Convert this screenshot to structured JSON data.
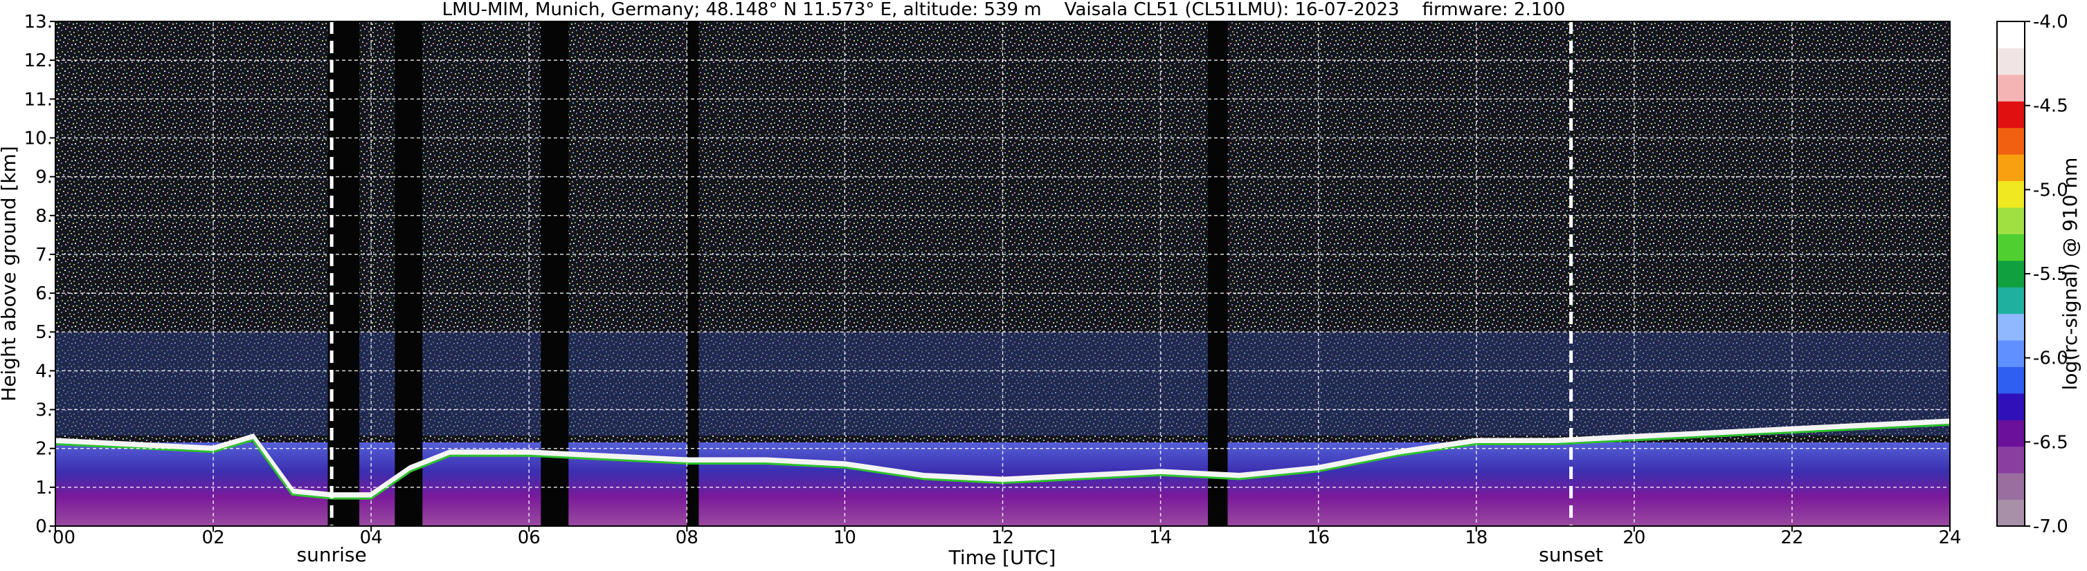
{
  "chart_data": {
    "type": "heatmap",
    "title": "LMU-MIM, Munich, Germany; 48.148° N 11.573° E, altitude: 539 m    Vaisala CL51 (CL51LMU): 16-07-2023    firmware: 2.100",
    "xlabel": "Time [UTC]",
    "ylabel": "Height above ground [km]",
    "xlim": [
      0,
      24
    ],
    "ylim": [
      0,
      13
    ],
    "x_ticks": [
      0,
      2,
      4,
      6,
      8,
      10,
      12,
      14,
      16,
      18,
      20,
      22,
      24
    ],
    "x_tick_labels": [
      "00",
      "02",
      "04",
      "06",
      "08",
      "10",
      "12",
      "14",
      "16",
      "18",
      "20",
      "22",
      "24"
    ],
    "y_ticks": [
      0,
      1,
      2,
      3,
      4,
      5,
      6,
      7,
      8,
      9,
      10,
      11,
      12,
      13
    ],
    "y_tick_labels": [
      "0.",
      "1.",
      "2.",
      "3.",
      "4.",
      "5.",
      "6.",
      "7.",
      "8.",
      "9.",
      "10.",
      "11.",
      "12.",
      "13."
    ],
    "grid": true,
    "colorbar": {
      "label": "log(rc-signal) @ 910 nm",
      "range": [
        -7.0,
        -4.0
      ],
      "ticks": [
        -7.0,
        -6.5,
        -6.0,
        -5.5,
        -5.0,
        -4.5,
        -4.0
      ],
      "tick_labels": [
        "-7.0",
        "-6.5",
        "-6.0",
        "-5.5",
        "-5.0",
        "-4.5",
        "-4.0"
      ],
      "colors": [
        "#a890a8",
        "#9a6fa0",
        "#8a3fa0",
        "#6a109a",
        "#3010b8",
        "#2f5ff0",
        "#6090ff",
        "#90b8ff",
        "#20b0a0",
        "#10a040",
        "#50d030",
        "#a0e040",
        "#f0e820",
        "#f8a010",
        "#f06010",
        "#e01010",
        "#f4b4b4",
        "#f0e4e4",
        "#ffffff"
      ]
    },
    "events": [
      {
        "name": "sunrise",
        "x": 3.5
      },
      {
        "name": "sunset",
        "x": 19.2
      }
    ],
    "boundary_layer_top_km": {
      "x": [
        0,
        1.0,
        2.0,
        2.5,
        3.0,
        3.5,
        4.0,
        4.5,
        5.0,
        6.0,
        7.0,
        8.0,
        9.0,
        10.0,
        11.0,
        12.0,
        13.0,
        14.0,
        15.0,
        16.0,
        17.0,
        18.0,
        19.0,
        20.0,
        21.0,
        22.0,
        23.0,
        24.0
      ],
      "y": [
        2.2,
        2.1,
        2.0,
        2.3,
        0.9,
        0.8,
        0.8,
        1.5,
        1.9,
        1.9,
        1.8,
        1.7,
        1.7,
        1.6,
        1.3,
        1.2,
        1.3,
        1.4,
        1.3,
        1.5,
        1.9,
        2.2,
        2.2,
        2.3,
        2.4,
        2.5,
        2.6,
        2.7
      ]
    }
  }
}
